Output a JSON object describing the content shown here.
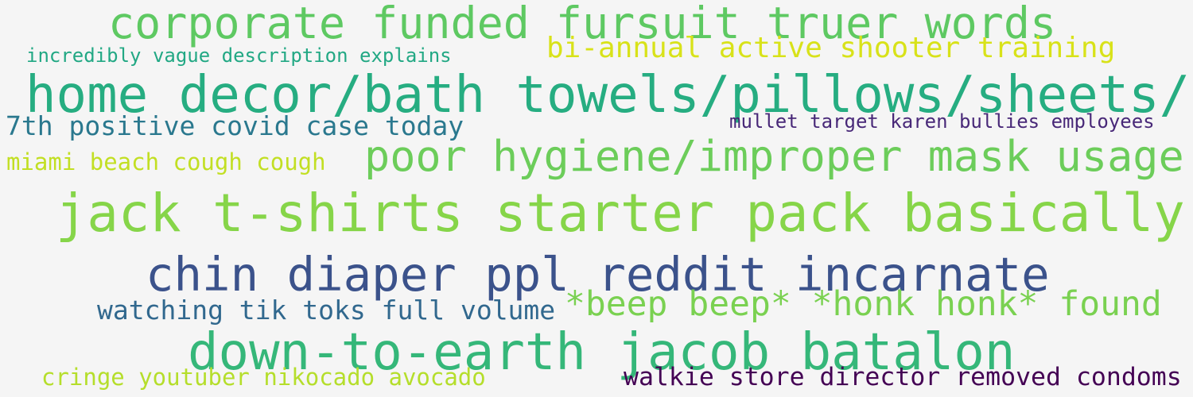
{
  "background": "#f5f5f5",
  "words": [
    {
      "text": "corporate funded fursuit truer words",
      "color": "#5ec962"
    },
    {
      "text": "incredibly vague description explains",
      "color": "#22a884"
    },
    {
      "text": "bi-annual active shooter training",
      "color": "#d8e219"
    },
    {
      "text": "home decor/bath towels/pillows/sheets/",
      "color": "#26ad81"
    },
    {
      "text": "7th positive covid case today",
      "color": "#2a788e"
    },
    {
      "text": "mullet target karen bullies employees",
      "color": "#482878"
    },
    {
      "text": "miami beach cough cough",
      "color": "#c2df23"
    },
    {
      "text": "poor hygiene/improper mask usage",
      "color": "#6ccd5a"
    },
    {
      "text": "jack t-shirts starter pack basically",
      "color": "#86d549"
    },
    {
      "text": "chin diaper ppl reddit incarnate",
      "color": "#3b528b"
    },
    {
      "text": "watching tik toks full volume",
      "color": "#31688e"
    },
    {
      "text": "*beep beep* *honk honk* found",
      "color": "#7ad151"
    },
    {
      "text": "down-to-earth jacob batalon",
      "color": "#35b779"
    },
    {
      "text": "cringe youtuber nikocado avocado",
      "color": "#b5de2b"
    },
    {
      "text": "walkie store director removed condoms",
      "color": "#440154"
    }
  ]
}
